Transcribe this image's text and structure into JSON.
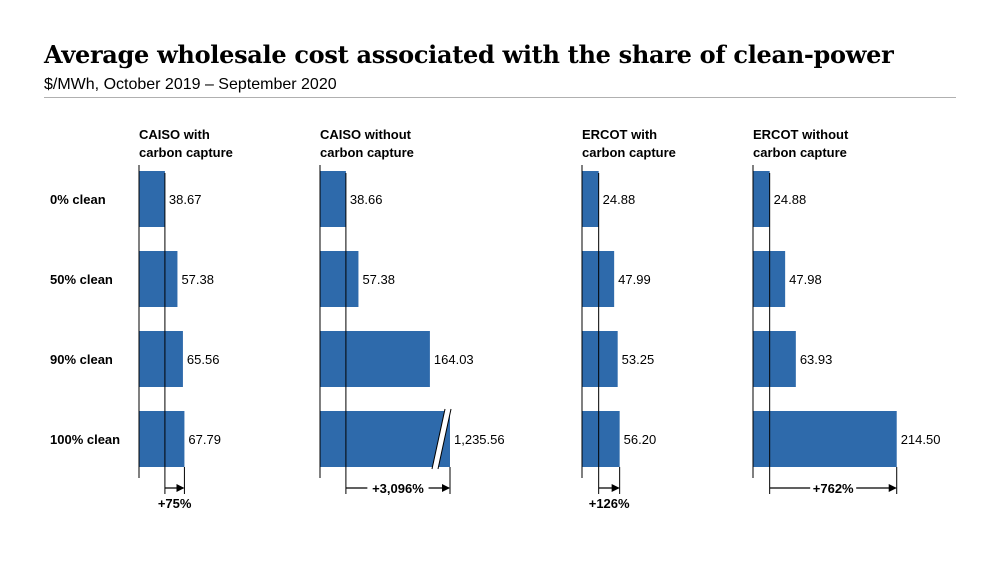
{
  "title": "Average wholesale cost associated with the share of clean-power",
  "subtitle": "$/MWh, October 2019 – September 2020",
  "chart_data": {
    "type": "bar",
    "orientation": "horizontal",
    "categories": [
      "0% clean",
      "50% clean",
      "90% clean",
      "100% clean"
    ],
    "bar_color": "#2e6aab",
    "series": [
      {
        "name": "CAISO with carbon capture",
        "header_lines": [
          "CAISO with",
          "carbon capture"
        ],
        "values": [
          38.67,
          57.38,
          65.56,
          67.79
        ],
        "labels": [
          "38.67",
          "57.38",
          "65.56",
          "67.79"
        ],
        "change": "+75%",
        "axis_break": false
      },
      {
        "name": "CAISO without carbon capture",
        "header_lines": [
          "CAISO without",
          "carbon capture"
        ],
        "values": [
          38.66,
          57.38,
          164.03,
          1235.56
        ],
        "labels": [
          "38.66",
          "57.38",
          "164.03",
          "1,235.56"
        ],
        "change": "+3,096%",
        "axis_break": true
      },
      {
        "name": "ERCOT with carbon capture",
        "header_lines": [
          "ERCOT with",
          "carbon capture"
        ],
        "values": [
          24.88,
          47.99,
          53.25,
          56.2
        ],
        "labels": [
          "24.88",
          "47.99",
          "53.25",
          "56.20"
        ],
        "change": "+126%",
        "axis_break": false
      },
      {
        "name": "ERCOT without carbon capture",
        "header_lines": [
          "ERCOT without",
          "carbon capture"
        ],
        "values": [
          24.88,
          47.98,
          63.93,
          214.5
        ],
        "labels": [
          "24.88",
          "47.98",
          "63.93",
          "214.50"
        ],
        "change": "+762%",
        "axis_break": false
      }
    ]
  }
}
